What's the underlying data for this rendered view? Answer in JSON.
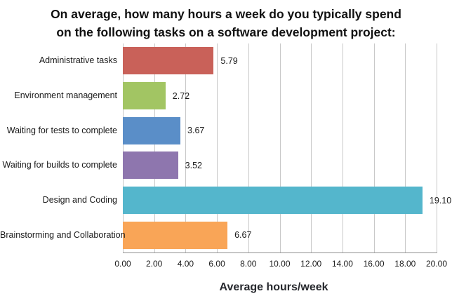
{
  "chart_data": {
    "type": "bar",
    "orientation": "horizontal",
    "title_line1": "On average, how many hours a week do you typically spend",
    "title_line2": "on the following tasks on a software development project:",
    "categories": [
      "Administrative tasks",
      "Environment management",
      "Waiting for tests to complete",
      "Waiting for builds to complete",
      "Design and Coding",
      "Brainstorming and Collaboration"
    ],
    "values": [
      5.79,
      2.72,
      3.67,
      3.52,
      19.1,
      6.67
    ],
    "value_labels": [
      "5.79",
      "2.72",
      "3.67",
      "3.52",
      "19.10",
      "6.67"
    ],
    "bar_colors": [
      "#C96159",
      "#A2C563",
      "#5A8EC8",
      "#8E76AE",
      "#54B6CC",
      "#F9A557"
    ],
    "xlabel": "Average hours/week",
    "xlim": [
      0,
      20
    ],
    "xticks": [
      "0.00",
      "2.00",
      "4.00",
      "6.00",
      "8.00",
      "10.00",
      "12.00",
      "14.00",
      "16.00",
      "18.00",
      "20.00"
    ],
    "grid": "vertical-only",
    "legend": "none",
    "gridline_color": "#C8C8C8",
    "axis_line_color": "#8F8F8F",
    "background_color": "#FFFFFF"
  }
}
